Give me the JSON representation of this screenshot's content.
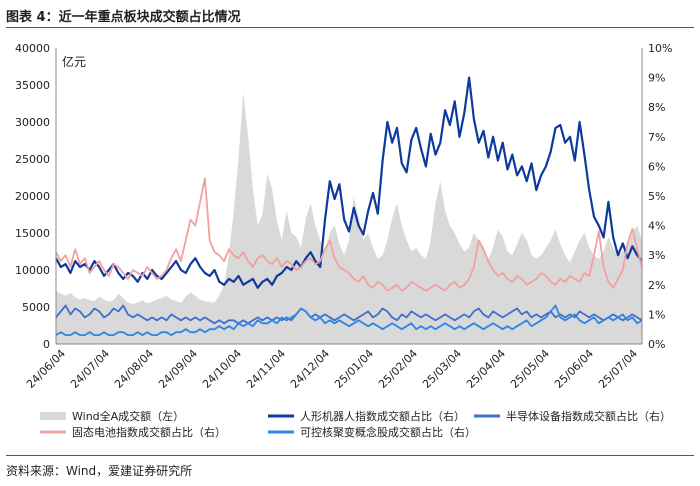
{
  "header": {
    "title": "图表 4：近一年重点板块成交额占比情况"
  },
  "footer": {
    "source": "资料来源：Wind，爱建证券研究所"
  },
  "colors": {
    "volume": "#d9d9d9",
    "robot": "#0d3a9c",
    "semiconductor": "#3f6fce",
    "battery": "#f2a0a0",
    "fusion": "#2e86e6",
    "rule": "#1f5fb4"
  },
  "chart_data": {
    "type": "area+line",
    "title": "近一年重点板块成交额占比情况",
    "unit_label": "亿元",
    "x_ticks": [
      "24/06/04",
      "24/07/04",
      "24/08/04",
      "24/09/04",
      "24/10/04",
      "24/11/04",
      "24/12/04",
      "25/01/04",
      "25/02/04",
      "25/03/04",
      "25/04/04",
      "25/05/04",
      "25/06/04",
      "25/07/04"
    ],
    "left_axis": {
      "ticks": [
        "0",
        "5000",
        "10000",
        "15000",
        "20000",
        "25000",
        "30000",
        "35000",
        "40000"
      ],
      "range": [
        0,
        40000
      ]
    },
    "right_axis": {
      "ticks": [
        "0%",
        "1%",
        "2%",
        "3%",
        "4%",
        "5%",
        "6%",
        "7%",
        "8%",
        "9%",
        "10%"
      ],
      "range": [
        0,
        10
      ]
    },
    "legend": [
      {
        "key": "volume",
        "label": "Wind全A成交额（左）",
        "style": "area"
      },
      {
        "key": "robot",
        "label": "人形机器人指数成交额占比（右）",
        "style": "line"
      },
      {
        "key": "semiconductor",
        "label": "半导体设备指数成交额占比（右）",
        "style": "line"
      },
      {
        "key": "battery",
        "label": "固态电池指数成交额占比（右）",
        "style": "line"
      },
      {
        "key": "fusion",
        "label": "可控核聚变概念股成交额占比（右）",
        "style": "line"
      }
    ],
    "series": [
      {
        "key": "volume",
        "axis": "left",
        "name": "Wind全A成交额（左）",
        "values": [
          7200,
          6800,
          6500,
          6900,
          6300,
          6000,
          6200,
          5900,
          5800,
          6400,
          6000,
          5700,
          5900,
          6800,
          6200,
          5600,
          5400,
          5600,
          5900,
          5500,
          5700,
          6000,
          6200,
          6500,
          6000,
          5800,
          5600,
          6400,
          7000,
          6500,
          6000,
          5800,
          5700,
          5600,
          6600,
          8000,
          12000,
          18000,
          25000,
          34000,
          28000,
          21000,
          16000,
          17500,
          23000,
          21000,
          16500,
          14000,
          18000,
          15000,
          14500,
          13000,
          17000,
          19000,
          16000,
          14000,
          12500,
          15000,
          16000,
          13500,
          12000,
          14000,
          20000,
          17000,
          14000,
          15000,
          13000,
          11500,
          12000,
          14000,
          17000,
          19000,
          16000,
          14000,
          12500,
          13000,
          12000,
          11500,
          14000,
          19000,
          22000,
          18000,
          16000,
          15000,
          13500,
          12500,
          13000,
          15000,
          14000,
          12500,
          11500,
          13000,
          15500,
          14500,
          12500,
          12000,
          13500,
          15000,
          14000,
          12000,
          11500,
          12000,
          13000,
          14000,
          15500,
          13500,
          12000,
          11000,
          12500,
          14000,
          15000,
          13000,
          12000,
          11500,
          12500,
          14500,
          13000,
          12000,
          12500,
          13500,
          15000,
          16000,
          14000
        ]
      },
      {
        "key": "robot",
        "axis": "right",
        "name": "人形机器人指数成交额占比（右）",
        "values": [
          2.9,
          2.6,
          2.7,
          2.4,
          2.8,
          2.6,
          2.7,
          2.5,
          2.8,
          2.6,
          2.3,
          2.5,
          2.7,
          2.4,
          2.2,
          2.4,
          2.3,
          2.1,
          2.4,
          2.2,
          2.5,
          2.3,
          2.2,
          2.4,
          2.6,
          2.8,
          2.5,
          2.4,
          2.7,
          2.9,
          2.6,
          2.4,
          2.3,
          2.5,
          2.1,
          2.0,
          2.2,
          2.1,
          2.3,
          2.0,
          2.1,
          2.2,
          1.9,
          2.1,
          2.2,
          2.0,
          2.3,
          2.4,
          2.6,
          2.5,
          2.8,
          2.6,
          2.9,
          3.1,
          2.8,
          2.6,
          4.2,
          5.5,
          4.9,
          5.4,
          4.2,
          3.8,
          4.6,
          4.0,
          3.7,
          4.5,
          5.1,
          4.4,
          6.2,
          7.5,
          6.8,
          7.3,
          6.1,
          5.8,
          6.9,
          7.3,
          6.6,
          6.0,
          7.1,
          6.4,
          6.8,
          7.9,
          7.4,
          8.2,
          7.0,
          7.8,
          9.0,
          7.6,
          6.8,
          7.2,
          6.3,
          7.0,
          6.2,
          6.8,
          5.9,
          6.4,
          5.7,
          6.0,
          5.5,
          6.1,
          5.2,
          5.7,
          6.0,
          6.5,
          7.3,
          7.4,
          6.8,
          7.0,
          6.2,
          7.5,
          6.4,
          5.2,
          4.3,
          4.0,
          3.6,
          4.8,
          3.6,
          3.0,
          3.4,
          2.9,
          3.3,
          3.0,
          2.8
        ]
      },
      {
        "key": "semiconductor",
        "axis": "right",
        "name": "半导体设备指数成交额占比（右）",
        "values": [
          0.9,
          1.1,
          1.3,
          1.0,
          1.2,
          1.1,
          0.9,
          1.0,
          1.2,
          1.1,
          0.9,
          1.0,
          1.2,
          1.1,
          1.3,
          1.0,
          0.9,
          1.0,
          0.9,
          0.8,
          0.9,
          0.8,
          0.9,
          0.8,
          1.0,
          0.9,
          0.8,
          0.9,
          0.8,
          0.9,
          0.8,
          0.9,
          0.8,
          0.7,
          0.8,
          0.7,
          0.8,
          0.8,
          0.7,
          0.8,
          0.7,
          0.8,
          0.9,
          0.8,
          0.9,
          0.8,
          0.9,
          0.8,
          0.9,
          0.8,
          1.0,
          1.2,
          1.1,
          0.9,
          1.0,
          0.9,
          1.0,
          0.9,
          0.8,
          0.9,
          1.0,
          0.9,
          0.8,
          0.9,
          1.0,
          1.1,
          0.9,
          1.0,
          1.2,
          1.1,
          0.9,
          0.8,
          1.0,
          0.9,
          1.1,
          1.0,
          0.9,
          1.0,
          0.9,
          0.8,
          0.9,
          1.0,
          0.9,
          0.8,
          0.9,
          1.0,
          0.9,
          1.1,
          1.2,
          1.0,
          0.9,
          1.1,
          1.0,
          0.9,
          1.0,
          1.1,
          1.2,
          1.0,
          1.1,
          0.9,
          1.0,
          0.9,
          1.0,
          1.1,
          0.9,
          1.0,
          0.9,
          1.0,
          0.9,
          1.1,
          1.0,
          0.9,
          1.0,
          0.9,
          0.8,
          0.9,
          1.0,
          0.9,
          0.8,
          0.9,
          1.0,
          0.9,
          0.8
        ]
      },
      {
        "key": "battery",
        "axis": "right",
        "name": "固态电池指数成交额占比（右）",
        "values": [
          3.1,
          2.8,
          3.0,
          2.6,
          3.2,
          2.7,
          2.9,
          2.4,
          2.6,
          2.8,
          2.5,
          2.3,
          2.7,
          2.6,
          2.4,
          2.2,
          2.5,
          2.4,
          2.3,
          2.6,
          2.4,
          2.2,
          2.3,
          2.5,
          2.9,
          3.2,
          2.8,
          3.5,
          4.2,
          4.0,
          4.8,
          5.6,
          3.5,
          3.1,
          3.0,
          2.8,
          3.2,
          3.0,
          2.9,
          3.1,
          2.8,
          2.6,
          2.9,
          3.0,
          2.8,
          2.7,
          2.9,
          2.6,
          2.8,
          2.7,
          2.5,
          2.6,
          2.8,
          2.9,
          2.7,
          2.8,
          3.2,
          3.5,
          2.9,
          2.6,
          2.5,
          2.4,
          2.2,
          2.1,
          2.3,
          2.0,
          1.9,
          2.1,
          2.0,
          1.8,
          1.9,
          2.0,
          1.8,
          1.9,
          2.1,
          2.0,
          1.9,
          1.8,
          1.9,
          2.0,
          1.9,
          1.8,
          2.0,
          2.1,
          1.9,
          2.0,
          2.2,
          2.6,
          3.5,
          3.2,
          2.8,
          2.5,
          2.3,
          2.4,
          2.2,
          2.1,
          2.3,
          2.2,
          2.0,
          2.1,
          2.2,
          2.4,
          2.3,
          2.1,
          2.0,
          2.2,
          2.1,
          2.3,
          2.2,
          2.1,
          2.4,
          2.3,
          3.0,
          3.8,
          2.6,
          2.1,
          1.9,
          2.2,
          2.5,
          3.4,
          3.9,
          3.2,
          2.6
        ]
      },
      {
        "key": "fusion",
        "axis": "right",
        "name": "可控核聚变概念股成交额占比（右）",
        "values": [
          0.3,
          0.4,
          0.3,
          0.3,
          0.4,
          0.3,
          0.3,
          0.4,
          0.3,
          0.3,
          0.4,
          0.3,
          0.3,
          0.4,
          0.4,
          0.3,
          0.3,
          0.4,
          0.3,
          0.4,
          0.3,
          0.3,
          0.4,
          0.4,
          0.3,
          0.4,
          0.4,
          0.5,
          0.4,
          0.4,
          0.5,
          0.4,
          0.5,
          0.5,
          0.6,
          0.5,
          0.6,
          0.5,
          0.7,
          0.6,
          0.7,
          0.6,
          0.8,
          0.7,
          0.7,
          0.8,
          0.7,
          0.9,
          0.8,
          0.9,
          1.0,
          1.2,
          1.1,
          0.9,
          0.8,
          0.9,
          0.7,
          0.8,
          0.7,
          0.8,
          0.7,
          0.6,
          0.7,
          0.8,
          0.7,
          0.6,
          0.7,
          0.6,
          0.5,
          0.6,
          0.7,
          0.6,
          0.5,
          0.6,
          0.7,
          0.5,
          0.6,
          0.5,
          0.6,
          0.5,
          0.6,
          0.7,
          0.6,
          0.5,
          0.6,
          0.5,
          0.6,
          0.7,
          0.6,
          0.5,
          0.6,
          0.7,
          0.6,
          0.5,
          0.6,
          0.5,
          0.6,
          0.7,
          0.8,
          0.6,
          0.7,
          0.8,
          0.9,
          1.1,
          1.3,
          0.9,
          0.8,
          0.9,
          1.0,
          0.8,
          0.7,
          0.8,
          0.9,
          0.7,
          0.8,
          0.9,
          0.8,
          0.9,
          1.0,
          0.8,
          0.9,
          0.7,
          0.8
        ]
      }
    ]
  }
}
